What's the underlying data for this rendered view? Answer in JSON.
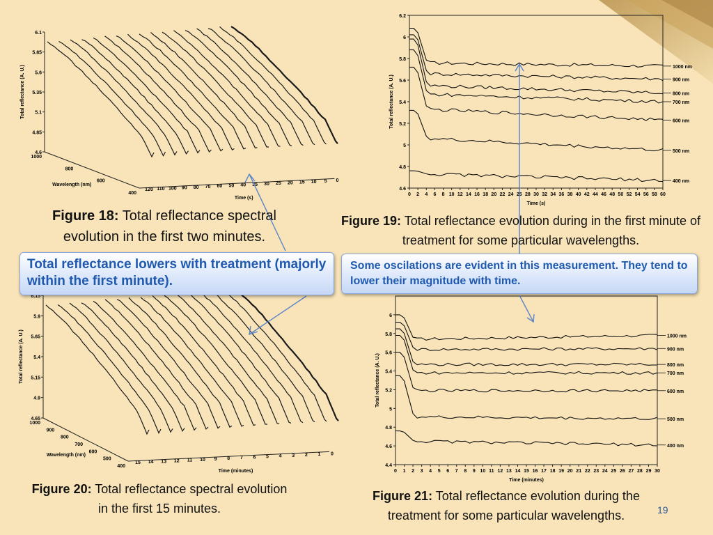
{
  "slide": {
    "page_number": "19",
    "accent_color": "#1f5ab0",
    "background": "#f8e4b8"
  },
  "captions": {
    "fig18": {
      "label": "Figure 18:",
      "text": "Total reflectance spectral evolution in the first two minutes."
    },
    "fig19": {
      "label": "Figure 19:",
      "text": "Total reflectance evolution during in the first minute of treatment for some particular wavelengths."
    },
    "fig20": {
      "label": "Figure 20:",
      "text": "Total reflectance spectral evolution in the first 15 minutes."
    },
    "fig21": {
      "label": "Figure 21:",
      "text": "Total reflectance evolution during the treatment for some particular wavelengths."
    }
  },
  "callouts": {
    "left": "Total reflectance lowers with treatment (majorly within the first minute).",
    "right": "Some oscilations are evident in this measurement. They tend to lower their magnitude with time."
  },
  "chart_data": [
    {
      "id": "fig18",
      "type": "line",
      "style": "3d-waterfall",
      "zlabel": "Total reflectance (A. U.)",
      "ylabel": "Wavelength (nm)",
      "xlabel": "Time (s)",
      "zticks": [
        "4.6",
        "4.85",
        "5.1",
        "5.35",
        "5.6",
        "5.85",
        "6.1"
      ],
      "yticks": [
        "1000",
        "800",
        "600",
        "400"
      ],
      "xticks": [
        "120",
        "110",
        "100",
        "90",
        "80",
        "70",
        "60",
        "50",
        "40",
        "35",
        "30",
        "25",
        "20",
        "15",
        "10",
        "5",
        "0"
      ]
    },
    {
      "id": "fig19",
      "type": "line",
      "ylabel": "Total reflectance (A. U.)",
      "xlabel": "Time (s)",
      "ylim": [
        4.6,
        6.2
      ],
      "xlim": [
        0,
        60
      ],
      "yticks": [
        "4.6",
        "4.8",
        "5",
        "5.2",
        "5.4",
        "5.6",
        "5.8",
        "6",
        "6.2"
      ],
      "xticks": [
        "0",
        "2",
        "4",
        "6",
        "8",
        "10",
        "12",
        "14",
        "16",
        "18",
        "20",
        "22",
        "24",
        "25",
        "28",
        "30",
        "32",
        "34",
        "36",
        "38",
        "40",
        "42",
        "44",
        "46",
        "48",
        "50",
        "52",
        "54",
        "56",
        "58",
        "60"
      ],
      "series": [
        {
          "name": "1000 nm",
          "start": 6.08,
          "drop_to": 5.76,
          "end": 5.73
        },
        {
          "name": "900 nm",
          "start": 6.02,
          "drop_to": 5.66,
          "end": 5.61
        },
        {
          "name": "800 nm",
          "start": 5.98,
          "drop_to": 5.55,
          "end": 5.48
        },
        {
          "name": "700 nm",
          "start": 5.88,
          "drop_to": 5.47,
          "end": 5.4
        },
        {
          "name": "600 nm",
          "start": 5.72,
          "drop_to": 5.33,
          "end": 5.23
        },
        {
          "name": "500 nm",
          "start": 5.32,
          "drop_to": 5.06,
          "end": 4.95
        },
        {
          "name": "400 nm",
          "start": 4.76,
          "drop_to": 4.73,
          "end": 4.67
        }
      ]
    },
    {
      "id": "fig20",
      "type": "line",
      "style": "3d-waterfall",
      "zlabel": "Total reflectance (A. U.)",
      "ylabel": "Wavelength (nm)",
      "xlabel": "Time (minutes)",
      "zticks": [
        "4.65",
        "4.9",
        "5.15",
        "5.4",
        "5.65",
        "5.9",
        "6.15"
      ],
      "yticks": [
        "1000",
        "900",
        "800",
        "700",
        "600",
        "500",
        "400"
      ],
      "xticks": [
        "15",
        "14",
        "13",
        "12",
        "11",
        "10",
        "9",
        "8",
        "7",
        "6",
        "5",
        "4",
        "3",
        "2",
        "1",
        "0"
      ]
    },
    {
      "id": "fig21",
      "type": "line",
      "ylabel": "Total reflectance (A. U.)",
      "xlabel": "Time (minutes)",
      "ylim": [
        4.4,
        6.2
      ],
      "xlim": [
        0,
        30
      ],
      "yticks": [
        "4.4",
        "4.6",
        "4.8",
        "5",
        "5.2",
        "5.4",
        "5.6",
        "5.8",
        "6"
      ],
      "xticks": [
        "0",
        "1",
        "2",
        "3",
        "4",
        "5",
        "6",
        "7",
        "8",
        "9",
        "10",
        "11",
        "12",
        "13",
        "14",
        "15",
        "16",
        "17",
        "18",
        "19",
        "20",
        "21",
        "22",
        "23",
        "24",
        "25",
        "26",
        "27",
        "28",
        "29",
        "30"
      ],
      "series": [
        {
          "name": "1000 nm",
          "start": 6.0,
          "drop_to": 5.74,
          "end": 5.78
        },
        {
          "name": "900 nm",
          "start": 5.92,
          "drop_to": 5.63,
          "end": 5.64
        },
        {
          "name": "800 nm",
          "start": 5.85,
          "drop_to": 5.47,
          "end": 5.47
        },
        {
          "name": "700 nm",
          "start": 5.78,
          "drop_to": 5.38,
          "end": 5.38
        },
        {
          "name": "600 nm",
          "start": 5.6,
          "drop_to": 5.19,
          "end": 5.19
        },
        {
          "name": "500 nm",
          "start": 5.35,
          "drop_to": 4.91,
          "end": 4.89
        },
        {
          "name": "400 nm",
          "start": 4.76,
          "drop_to": 4.65,
          "end": 4.61
        }
      ]
    }
  ]
}
